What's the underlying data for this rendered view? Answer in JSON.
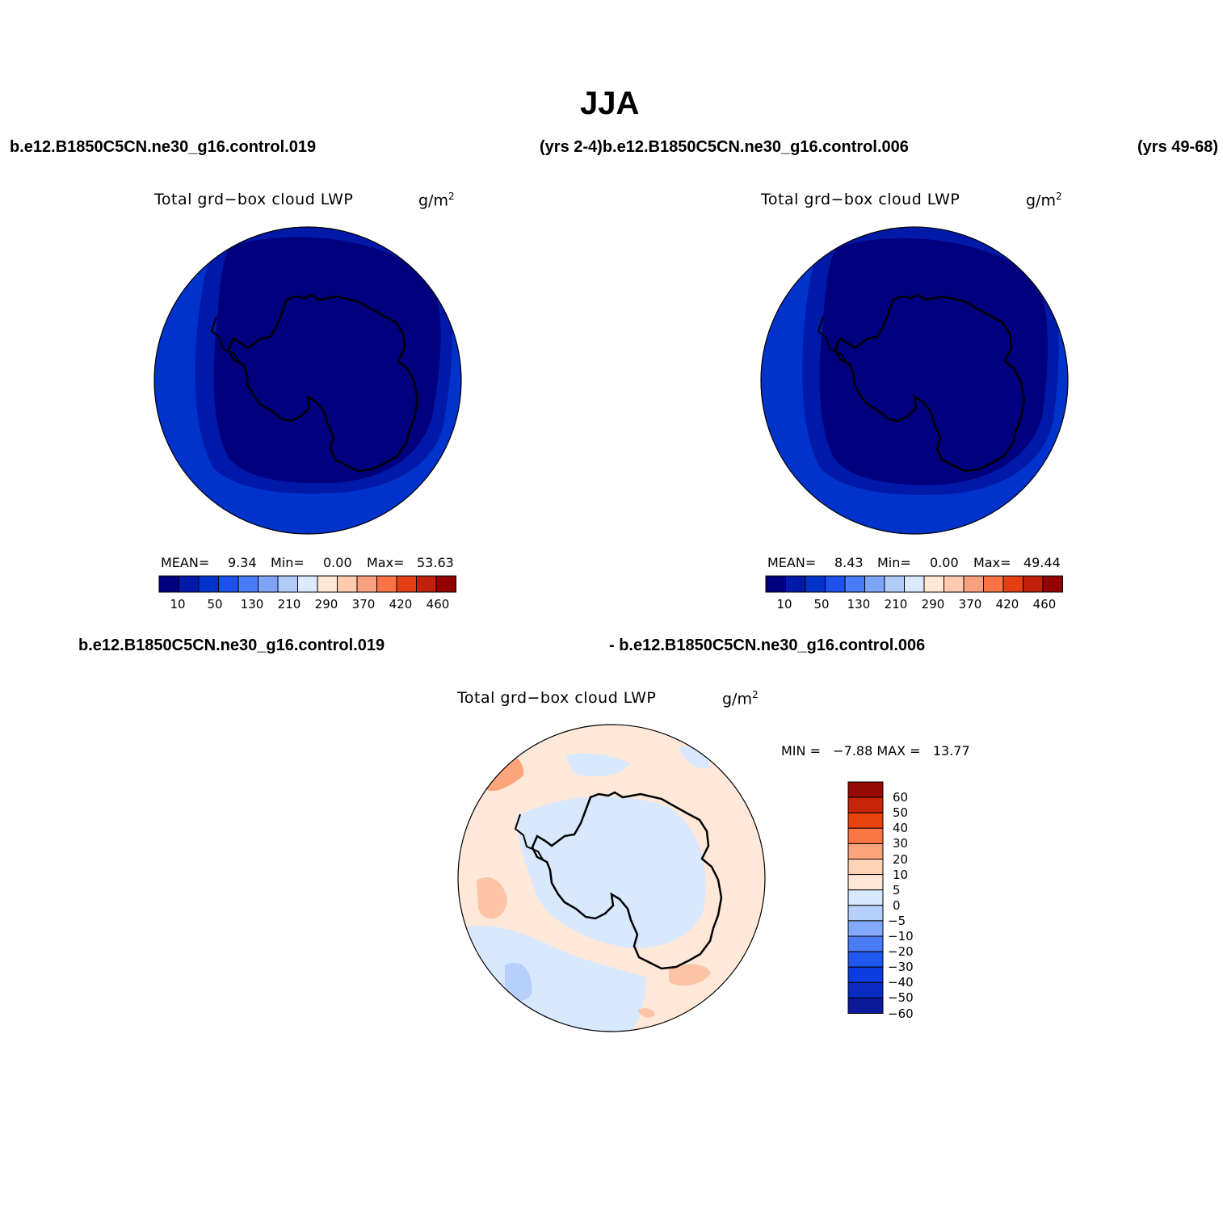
{
  "title": "JJA",
  "top_left_case": "b.e12.B1850C5CN.ne30_g16.control.019",
  "top_mid_case": "(yrs 2-4)b.e12.B1850C5CN.ne30_g16.control.006",
  "top_right_case": "(yrs 49-68)",
  "bottom_left_case": "b.e12.B1850C5CN.ne30_g16.control.019",
  "bottom_right_case": "- b.e12.B1850C5CN.ne30_g16.control.006",
  "panels": [
    {
      "variable": "Total grd−box cloud LWP",
      "units": "g/m",
      "units_sup": "2",
      "mean_label": "MEAN=",
      "mean": "9.34",
      "min_label": "Min=",
      "min": "0.00",
      "max_label": "Max=",
      "max": "53.63"
    },
    {
      "variable": "Total grd−box cloud LWP",
      "units": "g/m",
      "units_sup": "2",
      "mean_label": "MEAN=",
      "mean": "8.43",
      "min_label": "Min=",
      "min": "0.00",
      "max_label": "Max=",
      "max": "49.44"
    },
    {
      "variable": "Total grd−box cloud LWP",
      "units": "g/m",
      "units_sup": "2",
      "minmax": "MIN =   −7.88 MAX =   13.77"
    }
  ],
  "abs_colorbar": {
    "colors": [
      "#00007f",
      "#0019a8",
      "#0033cc",
      "#1e50ee",
      "#4a7cf5",
      "#7ea3f7",
      "#b3cdfb",
      "#dbeaff",
      "#ffe7d5",
      "#ffcbb0",
      "#f9a17e",
      "#f97346",
      "#e53e13",
      "#c2200b",
      "#930000"
    ],
    "labels": [
      "10",
      "50",
      "130",
      "210",
      "290",
      "370",
      "420",
      "460"
    ]
  },
  "diff_colorbar": {
    "colors": [
      "#0d1a99",
      "#0a2cc3",
      "#0b3de0",
      "#2057ef",
      "#4a7cf6",
      "#82a9fb",
      "#b7cffd",
      "#d7e8ff",
      "#ffe8d8",
      "#ffd3b8",
      "#fca47c",
      "#fb7646",
      "#e8430d",
      "#c7250a",
      "#950a05"
    ],
    "labels": [
      "60",
      "50",
      "40",
      "30",
      "20",
      "10",
      "5",
      "0",
      "−5",
      "−10",
      "−20",
      "−30",
      "−40",
      "−50",
      "−60"
    ]
  },
  "colors": {
    "deep_blue": "#00007f",
    "mid_blue": "#0033cc",
    "diff_pos": "#ffe8d8",
    "diff_pos2": "#fcc4a4",
    "diff_neg": "#d7e8ff",
    "diff_neg2": "#b7cffd"
  }
}
